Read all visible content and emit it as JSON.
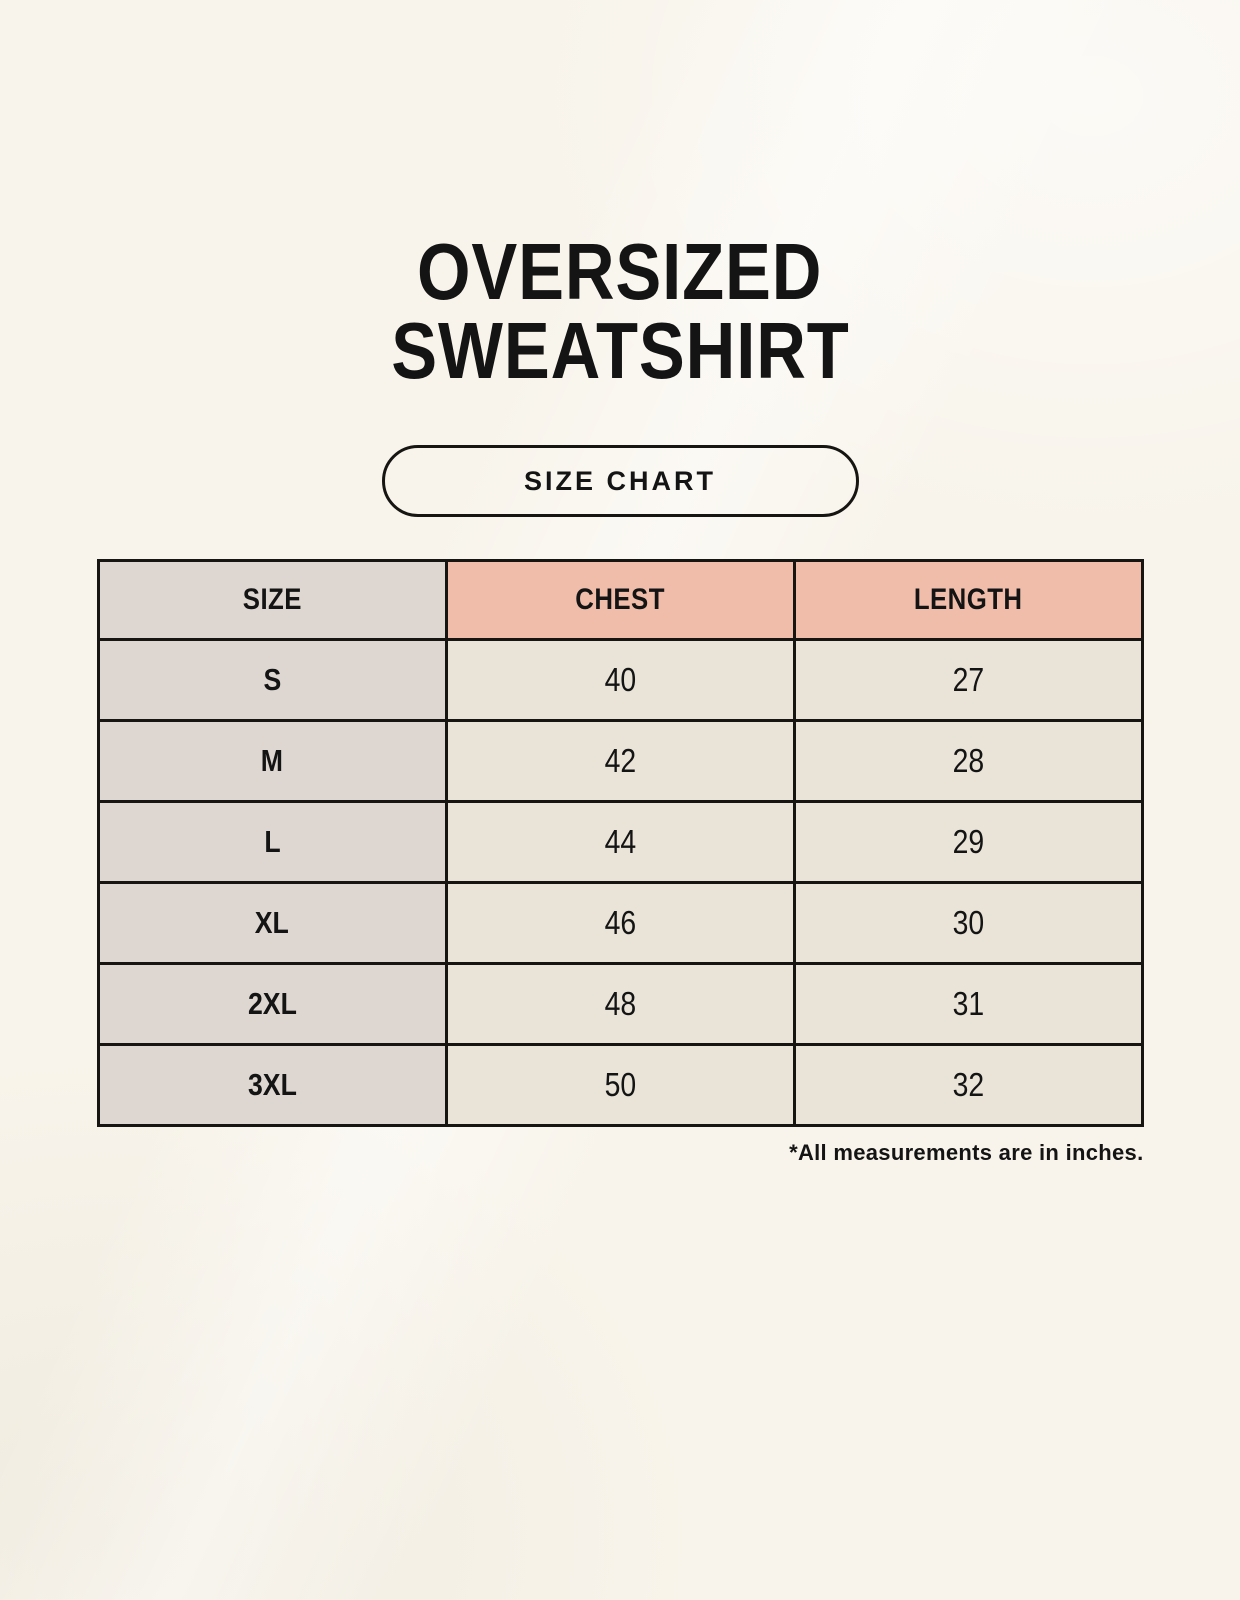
{
  "header": {
    "title_line1": "OVERSIZED",
    "title_line2": "SWEATSHIRT",
    "badge_label": "SIZE CHART"
  },
  "footnote_text": "*All measurements are in inches.",
  "colors": {
    "background": "#f8f4eb",
    "size_column_bg": "#ded7d1",
    "header_accent_bg": "#f1bdab",
    "value_cell_bg": "#e9e3d8",
    "border_color": "#171512",
    "text_color": "#141414"
  },
  "chart_data": {
    "type": "table",
    "title": "OVERSIZED SWEATSHIRT",
    "subtitle": "SIZE CHART",
    "units": "inches",
    "columns": [
      "SIZE",
      "CHEST",
      "LENGTH"
    ],
    "rows": [
      {
        "size": "S",
        "chest": "40",
        "length": "27"
      },
      {
        "size": "M",
        "chest": "42",
        "length": "28"
      },
      {
        "size": "L",
        "chest": "44",
        "length": "29"
      },
      {
        "size": "XL",
        "chest": "46",
        "length": "30"
      },
      {
        "size": "2XL",
        "chest": "48",
        "length": "31"
      },
      {
        "size": "3XL",
        "chest": "50",
        "length": "32"
      }
    ],
    "footnote": "*All measurements are in inches."
  }
}
